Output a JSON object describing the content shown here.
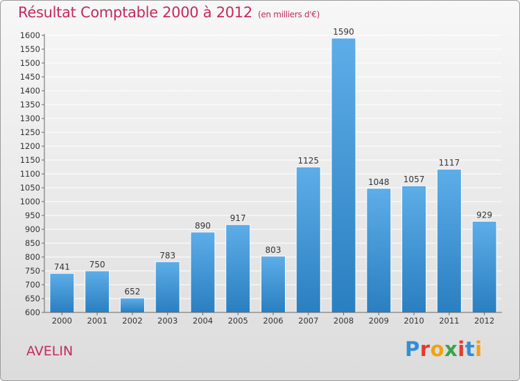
{
  "header": {
    "title": "Résultat Comptable 2000 à 2012",
    "subtitle": "(en milliers d'€)"
  },
  "footer": {
    "commune": "AVELIN",
    "brand_letters": [
      "P",
      "r",
      "o",
      "x",
      "i",
      "t",
      "i"
    ],
    "brand_colors": [
      "#2f8fd6",
      "#e23b2a",
      "#f2a30f",
      "#3aa34a",
      "#e23b2a",
      "#2f8fd6",
      "#f2a30f"
    ]
  },
  "chart_data": {
    "type": "bar",
    "title": "Résultat Comptable 2000 à 2012",
    "subtitle": "(en milliers d'€)",
    "xlabel": "",
    "ylabel": "",
    "categories": [
      "2000",
      "2001",
      "2002",
      "2003",
      "2004",
      "2005",
      "2006",
      "2007",
      "2008",
      "2009",
      "2010",
      "2011",
      "2012"
    ],
    "values": [
      741,
      750,
      652,
      783,
      890,
      917,
      803,
      1125,
      1590,
      1048,
      1057,
      1117,
      929
    ],
    "ylim": [
      600,
      1600
    ],
    "yticks": [
      600,
      650,
      700,
      750,
      800,
      850,
      900,
      950,
      1000,
      1050,
      1100,
      1150,
      1200,
      1250,
      1300,
      1350,
      1400,
      1450,
      1500,
      1550,
      1600
    ],
    "grid": true,
    "legend": "none",
    "colors": {
      "bar_top": "#5dade8",
      "bar_bottom": "#2a7fc0",
      "grid": "#ffffff",
      "axis": "#666666",
      "text": "#333333"
    }
  }
}
